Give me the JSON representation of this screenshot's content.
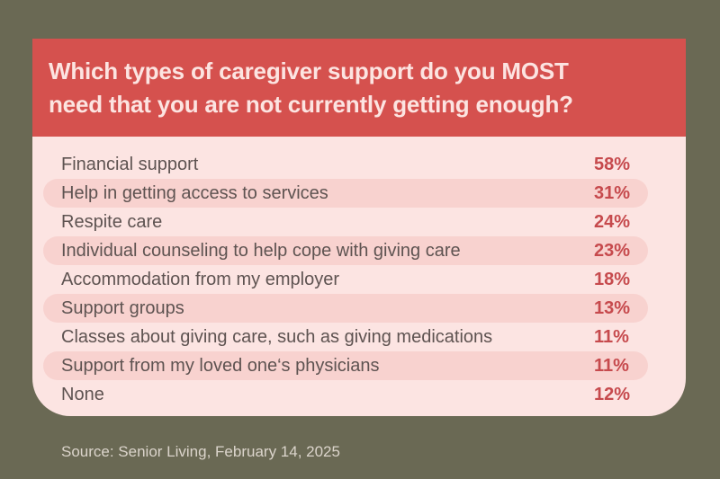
{
  "page": {
    "background_color": "#6a6954",
    "card": {
      "header": {
        "background_color": "#d5514e",
        "text_color": "#fce4e1",
        "title_line1": "Which types of caregiver support do you MOST",
        "title_line2": "need that you are not currently getting enough?"
      },
      "panel": {
        "background_color": "#fce4e2",
        "row_highlight_color": "#f8d2cf",
        "label_color": "#5e5351",
        "value_color": "#c64a4d",
        "rows": [
          {
            "label": "Financial support",
            "value": "58%"
          },
          {
            "label": "Help in getting access to services",
            "value": "31%"
          },
          {
            "label": "Respite care",
            "value": "24%"
          },
          {
            "label": "Individual counseling to help cope with giving care",
            "value": "23%"
          },
          {
            "label": "Accommodation from my employer",
            "value": "18%"
          },
          {
            "label": "Support groups",
            "value": "13%"
          },
          {
            "label": "Classes about giving care, such as giving medications",
            "value": "11%"
          },
          {
            "label": "Support from my loved one‘s physicians",
            "value": "11%"
          },
          {
            "label": "None",
            "value": "12%"
          }
        ]
      }
    },
    "source": "Source: Senior Living, February 14, 2025"
  },
  "chart_data": {
    "type": "table",
    "title": "Which types of caregiver support do you MOST need that you are not currently getting enough?",
    "categories": [
      "Financial support",
      "Help in getting access to services",
      "Respite care",
      "Individual counseling to help cope with giving care",
      "Accommodation from my employer",
      "Support groups",
      "Classes about giving care, such as giving medications",
      "Support from my loved one‘s physicians",
      "None"
    ],
    "values": [
      58,
      31,
      24,
      23,
      18,
      13,
      11,
      11,
      12
    ],
    "unit": "%",
    "highlighted_row_indexes": [
      1,
      3,
      5,
      7
    ],
    "source": "Source: Senior Living, February 14, 2025"
  }
}
